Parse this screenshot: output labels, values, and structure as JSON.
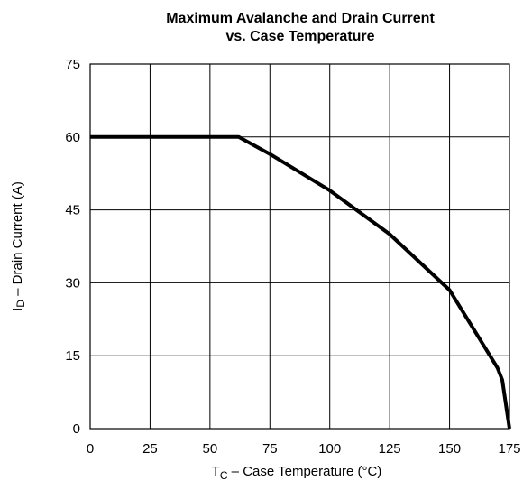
{
  "chart_data": {
    "type": "line",
    "title_line1": "Maximum Avalanche and Drain Current",
    "title_line2": "vs. Case Temperature",
    "xlabel": {
      "main": "T",
      "sub": "C",
      "rest": " – Case Temperature (°C)"
    },
    "ylabel": {
      "main": "I",
      "sub": "D",
      "rest": " – Drain Current (A)"
    },
    "xlim": [
      0,
      175
    ],
    "ylim": [
      0,
      75
    ],
    "x_ticks": [
      0,
      25,
      50,
      75,
      100,
      125,
      150,
      175
    ],
    "y_ticks": [
      0,
      15,
      30,
      45,
      60,
      75
    ],
    "grid": true,
    "legend": "none",
    "series": [
      {
        "x": [
          0,
          62,
          75,
          100,
          125,
          150,
          170,
          172,
          175
        ],
        "y": [
          60,
          60,
          56.5,
          49,
          40,
          28.5,
          12.5,
          10,
          0
        ]
      }
    ]
  }
}
